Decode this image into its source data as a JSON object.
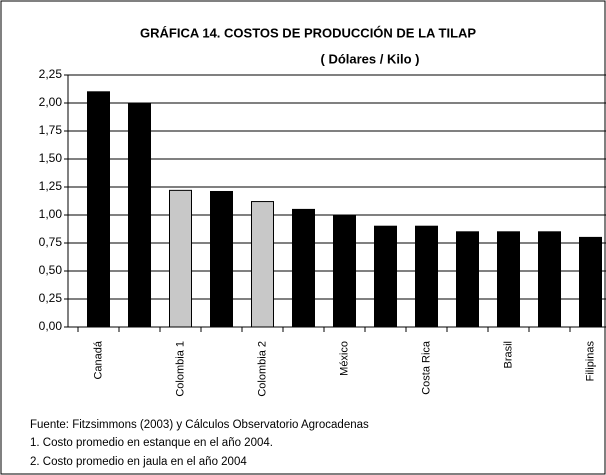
{
  "chart_data": {
    "type": "bar",
    "title": "GRÁFICA 14.  COSTOS DE PRODUCCIÓN DE LA TILAP",
    "subtitle": "( Dólares / Kilo )",
    "categories": [
      "Canadá",
      null,
      "Colombia 1",
      null,
      "Colombia 2",
      null,
      "México",
      null,
      "Costa Rica",
      null,
      "Brasil",
      null,
      "Filipinas"
    ],
    "values": [
      2.1,
      2.0,
      1.22,
      1.21,
      1.12,
      1.05,
      1.0,
      0.9,
      0.9,
      0.85,
      0.85,
      0.85,
      0.8
    ],
    "colors": [
      "#000000",
      "#000000",
      "#c8c8c8",
      "#000000",
      "#c8c8c8",
      "#000000",
      "#000000",
      "#000000",
      "#000000",
      "#000000",
      "#000000",
      "#000000",
      "#000000"
    ],
    "ylim": [
      0,
      2.25
    ],
    "yticks": [
      {
        "value": 0,
        "label": "0,00"
      },
      {
        "value": 0.25,
        "label": "0,25"
      },
      {
        "value": 0.5,
        "label": "0,50"
      },
      {
        "value": 0.75,
        "label": "0,75"
      },
      {
        "value": 1,
        "label": "1,00"
      },
      {
        "value": 1.25,
        "label": "1,25"
      },
      {
        "value": 1.5,
        "label": "1,50"
      },
      {
        "value": 1.75,
        "label": "1,75"
      },
      {
        "value": 2,
        "label": "2,00"
      },
      {
        "value": 2.25,
        "label": "2,25"
      }
    ],
    "grid": true,
    "notes": [
      "Fuente:  Fitzsimmons (2003) y Cálculos Observatorio Agrocadenas",
      "1. Costo promedio en estanque en el año 2004.",
      "2. Costo promedio en jaula en el año 2004"
    ]
  }
}
